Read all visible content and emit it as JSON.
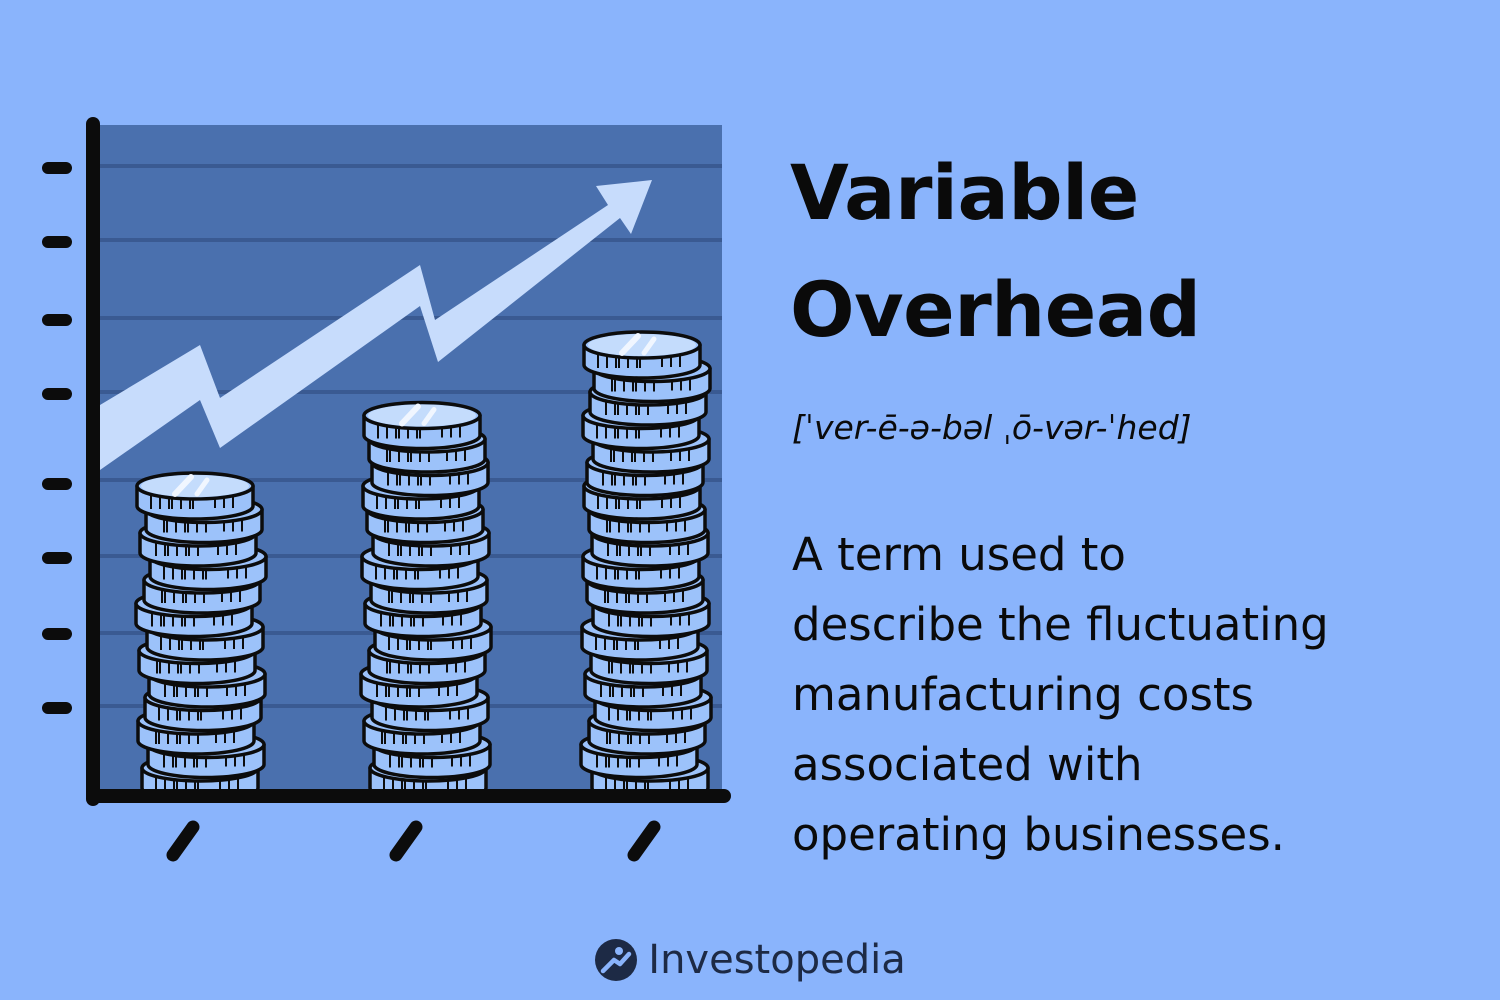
{
  "title": {
    "line1": "Variable",
    "line2": "Overhead"
  },
  "pronunciation": "[ˈver-ē-ə-bəl ˌō-vər-ˈhed]",
  "definition": {
    "line1": "A term used to",
    "line2": "describe the fluctuating",
    "line3": "manufacturing costs",
    "line4": "associated with",
    "line5": "operating businesses."
  },
  "brand": {
    "name": "Investopedia",
    "icon": "investopedia-logo-icon"
  },
  "illustration": {
    "description_icons": [
      "coin-stack-icon",
      "trend-up-arrow-icon"
    ],
    "coin_stacks": [
      {
        "coins": 13
      },
      {
        "coins": 16
      },
      {
        "coins": 19
      }
    ],
    "colors": {
      "background": "#8ab4fc",
      "chart_panel": "#4a70ae",
      "gridline": "#3a5a92",
      "arrow": "#c7dcfc",
      "coin_fill": "#9cc2fa",
      "coin_top": "#c4dcfc",
      "outline": "#0c0c0c"
    }
  }
}
